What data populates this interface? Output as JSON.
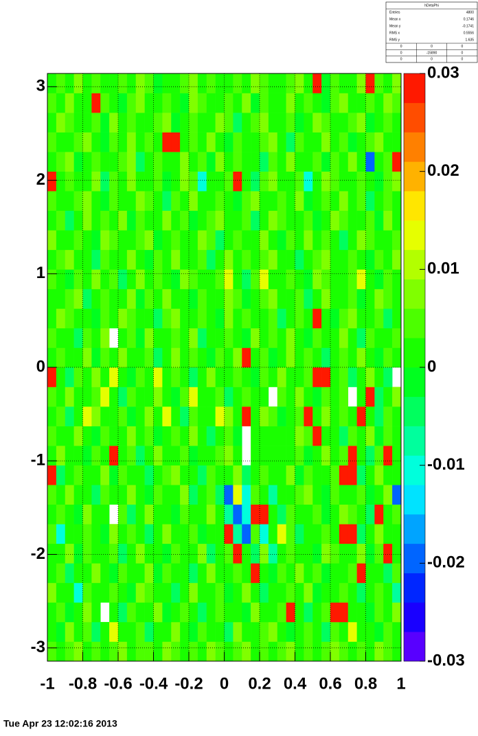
{
  "chart_data": {
    "type": "heatmap2d",
    "xlim": [
      -1,
      1
    ],
    "xticks": [
      -1,
      -0.8,
      -0.6,
      -0.4,
      -0.2,
      0,
      0.2,
      0.4,
      0.6,
      0.8,
      1
    ],
    "ylim": [
      -3.1416,
      3.1416
    ],
    "yticks": [
      -3,
      -2,
      -1,
      0,
      1,
      2,
      3
    ],
    "zlim": [
      -0.03,
      0.03
    ],
    "zticks": [
      -0.03,
      -0.02,
      -0.01,
      0,
      0.01,
      0.02,
      0.03
    ],
    "grid": true,
    "values": [
      [
        0.004,
        0.002,
        0.004,
        0.006,
        0.002,
        0.004,
        0.002,
        0.004,
        0.006,
        0.002,
        0.004,
        0.004,
        0.002,
        0.006,
        0.004,
        0.002,
        0.004,
        0.002,
        0.006,
        0.004,
        0.002,
        0.004,
        0.006,
        0.002,
        0.004,
        0.002,
        0.004,
        0.006,
        0.002,
        0.004,
        0.002,
        0.004,
        0.006,
        0.004,
        0.002,
        0.004,
        0.002,
        0.006,
        0.004,
        0.002
      ],
      [
        0.002,
        -0.002,
        0.008,
        0,
        0.004,
        -0.004,
        0.002,
        0.012,
        0,
        0.002,
        0.004,
        -0.006,
        0.002,
        0,
        0.006,
        0.002,
        -0.002,
        0.004,
        0,
        0.002,
        -0.004,
        0.006,
        0.002,
        0,
        0.004,
        0.008,
        0.002,
        -0.002,
        0,
        0.004,
        0.002,
        -0.006,
        0.004,
        0.002,
        0.012,
        0,
        0.002,
        -0.002,
        0.004,
        0
      ],
      [
        0,
        0.004,
        -0.002,
        0.002,
        0.006,
        0,
        null,
        0.002,
        -0.004,
        0.004,
        0.002,
        0,
        0.008,
        -0.002,
        0.002,
        0.004,
        0,
        -0.006,
        0.002,
        0.004,
        0,
        0.002,
        -0.002,
        0.006,
        0.002,
        0,
        0.004,
        0.03,
        0.002,
        -0.004,
        0,
        0.004,
        0.03,
        0.03,
        0.002,
        0,
        -0.002,
        0.004,
        0.002,
        0.006
      ],
      [
        0.006,
        0,
        0.002,
        -0.01,
        0.004,
        0.002,
        0,
        0.004,
        0.002,
        -0.002,
        0.006,
        0.004,
        0,
        0.002,
        -0.004,
        0.002,
        0.008,
        0,
        0.002,
        0.004,
        -0.002,
        0,
        0.006,
        0.002,
        -0.004,
        0.002,
        0,
        0.004,
        0.002,
        0.008,
        -0.002,
        0,
        0.002,
        0.004,
        0,
        -0.006,
        0.002,
        0.004,
        0,
        -0.008
      ],
      [
        0.002,
        0.004,
        -0.004,
        0.002,
        0,
        0.006,
        0.002,
        -0.002,
        0.004,
        0,
        0.002,
        0.008,
        -0.002,
        0.004,
        0.002,
        0,
        -0.004,
        0.002,
        0.006,
        0,
        0.002,
        0.004,
        0,
        0.03,
        0.002,
        -0.002,
        0.004,
        0,
        0.006,
        0.002,
        0.004,
        -0.002,
        0,
        0.002,
        0.004,
        0.03,
        0,
        0.002,
        -0.004,
        0.004
      ],
      [
        0,
        0.002,
        0.006,
        -0.002,
        0.004,
        0,
        0.002,
        0.004,
        -0.006,
        0.002,
        0.008,
        0,
        0.002,
        -0.002,
        0.004,
        0.002,
        0,
        0.006,
        -0.004,
        0.002,
        0.004,
        0.03,
        0.002,
        -0.004,
        0.008,
        -0.008,
        0.002,
        0.004,
        0,
        0.002,
        -0.002,
        0.006,
        0.004,
        0,
        0.002,
        0.008,
        -0.002,
        0.004,
        0.03,
        0
      ],
      [
        0.004,
        -0.01,
        0.002,
        0,
        0.004,
        0.002,
        -0.002,
        0.006,
        0,
        0.004,
        0.002,
        -0.004,
        0.002,
        0.008,
        0,
        0.002,
        0.004,
        -0.002,
        0.002,
        0,
        0.03,
        -0.008,
        -0.02,
        0.004,
        -0.01,
        0.002,
        0.012,
        0.004,
        -0.006,
        0.002,
        0,
        0.004,
        0.002,
        0.03,
        0.03,
        -0.004,
        0.002,
        0.006,
        0,
        0.002
      ],
      [
        0.002,
        0.004,
        0,
        -0.002,
        0.008,
        0,
        0.002,
        null,
        0.004,
        -0.004,
        0.002,
        0.006,
        0,
        0.002,
        -0.002,
        0.004,
        0.002,
        0,
        0.006,
        0.002,
        -0.008,
        -0.02,
        -0.01,
        0.03,
        0.03,
        0.002,
        -0.006,
        0.004,
        0.002,
        0,
        0.004,
        -0.002,
        0.002,
        0.006,
        0.004,
        0,
        -0.004,
        0.03,
        0.002,
        0.004
      ],
      [
        0.004,
        0.002,
        0.006,
        0,
        0.002,
        -0.004,
        0.004,
        0.002,
        0,
        0.008,
        0.002,
        -0.002,
        0.004,
        0,
        0.002,
        0.006,
        -0.004,
        0.002,
        0.004,
        -0.006,
        -0.02,
        0.012,
        -0.01,
        0.004,
        0.002,
        -0.008,
        0.002,
        0,
        0.004,
        0.006,
        0.002,
        -0.002,
        0.004,
        0,
        0.002,
        0.004,
        -0.002,
        0.002,
        0.008,
        -0.02
      ],
      [
        0.03,
        -0.004,
        0.002,
        0.004,
        0,
        0.002,
        0.006,
        -0.002,
        0.004,
        0.002,
        0,
        -0.006,
        0.002,
        0.004,
        0.008,
        0,
        0.002,
        -0.004,
        0.004,
        0.002,
        0,
        0.006,
        -0.004,
        0.002,
        0.004,
        0,
        0.002,
        0.008,
        -0.002,
        0.004,
        0.002,
        0,
        0.004,
        0.03,
        0.03,
        -0.004,
        0.002,
        0.006,
        0,
        0.002
      ],
      [
        0.002,
        0.006,
        0,
        0.002,
        -0.002,
        0.004,
        0.002,
        0.03,
        0,
        0.004,
        -0.004,
        0.002,
        0.006,
        0,
        0.002,
        0.004,
        -0.002,
        0.002,
        0,
        0.004,
        0.006,
        0.002,
        null,
        0,
        0,
        0,
        0,
        0.002,
        0.004,
        -0.002,
        0.002,
        0.006,
        0,
        0.004,
        0.03,
        0.002,
        -0.004,
        0.004,
        0.03,
        0.002
      ],
      [
        0.004,
        0,
        0.002,
        0.006,
        0.002,
        -0.002,
        0.004,
        0,
        0.002,
        0.008,
        0,
        0.004,
        -0.002,
        0.002,
        0.004,
        0,
        0.006,
        0.002,
        -0.004,
        0.002,
        0.004,
        -0.002,
        null,
        0,
        0,
        0,
        0,
        0.002,
        0.006,
        0.004,
        0.03,
        0,
        0.002,
        -0.004,
        0.004,
        0.002,
        0.008,
        -0.002,
        0.004,
        0
      ],
      [
        0.002,
        0.004,
        -0.004,
        0.002,
        0.012,
        0.006,
        0,
        0.002,
        0.004,
        -0.002,
        0.002,
        0.006,
        0,
        0.012,
        0.002,
        -0.004,
        0.004,
        0.002,
        0,
        0.012,
        0.006,
        0.002,
        0.03,
        0.002,
        0.008,
        0.004,
        -0.002,
        0.002,
        0.004,
        0.03,
        0.002,
        0.006,
        0,
        0.004,
        0.002,
        0.03,
        0.002,
        -0.006,
        0.004,
        0.002
      ],
      [
        0.004,
        0.002,
        0.008,
        0,
        0.002,
        0.004,
        0.012,
        0.002,
        -0.004,
        0.004,
        0.002,
        0,
        0.006,
        0.002,
        -0.002,
        0.004,
        0.012,
        0,
        0.002,
        0.004,
        -0.006,
        0.002,
        0.004,
        0,
        0.002,
        null,
        0.004,
        0.002,
        0.006,
        0.002,
        -0.002,
        0.004,
        0.002,
        0.004,
        null,
        0.002,
        0.03,
        -0.004,
        0.002,
        0.006
      ],
      [
        0.03,
        0.002,
        -0.004,
        0.004,
        0.002,
        0.006,
        0,
        0.012,
        0.002,
        -0.002,
        0.004,
        0.002,
        0.012,
        0,
        0.004,
        0.002,
        -0.004,
        0.002,
        0.006,
        0,
        0.002,
        0.004,
        0.002,
        -0.002,
        0.004,
        0.002,
        0.006,
        0,
        0.002,
        0.004,
        0.03,
        0.03,
        0.002,
        0.004,
        -0.004,
        0.002,
        0.006,
        0.002,
        -0.004,
        null
      ],
      [
        0.002,
        0.004,
        0,
        0.002,
        0.006,
        -0.002,
        0.004,
        0.002,
        0.008,
        0,
        0.002,
        0.004,
        -0.004,
        0.002,
        0.006,
        0,
        0.004,
        0.002,
        -0.002,
        0.004,
        0.002,
        0.006,
        0.03,
        0.002,
        0.004,
        -0.002,
        0.002,
        0.006,
        0,
        0.004,
        0.002,
        -0.004,
        0.002,
        0.004,
        0,
        0.008,
        0.002,
        -0.002,
        0.004,
        0.002
      ],
      [
        0.004,
        0,
        0.002,
        -0.004,
        0.004,
        0.002,
        0.008,
        null,
        0.002,
        0.004,
        -0.002,
        0.006,
        0.002,
        0,
        0.004,
        0.002,
        0.006,
        -0.004,
        0.002,
        0,
        0.004,
        0.002,
        -0.002,
        0.006,
        0.002,
        0.004,
        0,
        0.008,
        0.002,
        -0.002,
        0.004,
        0.002,
        0,
        0.006,
        0.002,
        -0.004,
        0.004,
        0.002,
        0,
        0.004
      ],
      [
        0.002,
        0.006,
        0.004,
        0,
        0.002,
        -0.002,
        0.004,
        0.002,
        0.006,
        0.004,
        0,
        0.002,
        -0.004,
        0.004,
        0.008,
        0.002,
        0,
        0.004,
        0.002,
        -0.002,
        0.006,
        0.002,
        0.004,
        0,
        0.002,
        0.004,
        -0.006,
        0.002,
        0.004,
        0.002,
        0.03,
        0.002,
        -0.002,
        0.004,
        0.006,
        0,
        0.002,
        0.004,
        -0.004,
        0.002
      ],
      [
        0,
        0.002,
        0.004,
        0.006,
        -0.004,
        0.002,
        0.004,
        0,
        0.002,
        0.008,
        -0.002,
        0.004,
        0.002,
        0.006,
        0,
        0.002,
        -0.002,
        0.004,
        0.002,
        0,
        0.006,
        0.004,
        -0.002,
        0.002,
        0.004,
        0.008,
        0.002,
        0,
        0.004,
        -0.004,
        0.002,
        0.006,
        0,
        0.002,
        0.004,
        -0.002,
        0.002,
        0.008,
        0.004,
        0
      ],
      [
        0.004,
        0.002,
        -0.002,
        0.004,
        0,
        0.006,
        0.002,
        0.004,
        -0.004,
        0.002,
        0.008,
        0,
        0.004,
        0.002,
        -0.002,
        0.006,
        0.004,
        0.002,
        0,
        0.004,
        0.012,
        0.002,
        -0.004,
        0.004,
        0.012,
        0.002,
        0,
        0.004,
        0.002,
        -0.002,
        0.006,
        0.004,
        0,
        0.002,
        0.004,
        0.012,
        0.002,
        -0.002,
        0.004,
        0.002
      ],
      [
        0.002,
        0.004,
        0.006,
        0,
        0.002,
        -0.004,
        0.004,
        0.002,
        0,
        0.006,
        0.002,
        -0.002,
        0.004,
        0.002,
        0.008,
        0,
        0.002,
        0.004,
        -0.004,
        0.002,
        0.006,
        0,
        0.004,
        0.002,
        0.004,
        0.008,
        0.002,
        0,
        -0.006,
        0.002,
        0.004,
        0.006,
        0.002,
        0,
        0.004,
        0.002,
        -0.002,
        0.004,
        0.002,
        0.006
      ],
      [
        0.006,
        0.002,
        0,
        0.004,
        0.002,
        -0.002,
        0.008,
        0.004,
        0.002,
        0,
        0.004,
        0.006,
        -0.002,
        0.002,
        0.004,
        0,
        0.002,
        0.006,
        0.004,
        -0.004,
        0.002,
        0.004,
        0,
        0.002,
        0.006,
        0.002,
        -0.002,
        0.004,
        0.002,
        0.008,
        0,
        0.004,
        0.002,
        -0.004,
        0.002,
        0.006,
        0.004,
        0,
        0.002,
        0.004
      ],
      [
        0.002,
        0.004,
        -0.004,
        0.002,
        0.006,
        0,
        0.004,
        0.002,
        0.008,
        -0.002,
        0.004,
        0.002,
        0,
        0.006,
        0.002,
        0.004,
        -0.002,
        0.002,
        0.004,
        0.006,
        0,
        0.002,
        0.004,
        -0.006,
        0.002,
        0.008,
        0.004,
        0,
        0.002,
        0.004,
        -0.002,
        0.002,
        0.006,
        0.004,
        0,
        0.002,
        0.004,
        -0.002,
        0.006,
        0.002
      ],
      [
        0.004,
        0,
        0.002,
        0.004,
        0.006,
        0.002,
        -0.002,
        0.004,
        0.002,
        0,
        0.006,
        0.004,
        0.002,
        -0.004,
        0.004,
        0.002,
        0.006,
        0,
        0.002,
        0.004,
        0.002,
        -0.002,
        0.004,
        0.006,
        0.002,
        0,
        0.004,
        0.002,
        0.008,
        -0.002,
        0.002,
        0.004,
        0,
        0.006,
        0.002,
        0.004,
        -0.004,
        0.002,
        0.004,
        0.002
      ],
      [
        0.03,
        0.002,
        0.004,
        0,
        0.002,
        0.006,
        -0.004,
        0.004,
        0.002,
        0.008,
        0,
        0.002,
        0.004,
        -0.002,
        0.002,
        0.006,
        0.004,
        -0.01,
        0,
        0.002,
        0.004,
        0.03,
        0.002,
        -0.004,
        0.004,
        0.006,
        0.002,
        0,
        0.004,
        -0.01,
        0.002,
        0.006,
        0.004,
        0,
        0.002,
        0.004,
        0.002,
        -0.002,
        0.004,
        0.006
      ],
      [
        0.002,
        0.004,
        0.006,
        -0.002,
        0.002,
        0.004,
        0.002,
        0,
        0.004,
        0.006,
        -0.004,
        0.002,
        0.004,
        0,
        0.002,
        0.008,
        0.002,
        0.004,
        -0.002,
        0.006,
        0.002,
        0.004,
        0,
        0.002,
        -0.004,
        0.004,
        0.002,
        0.006,
        0,
        0.002,
        0.004,
        -0.002,
        0.004,
        0.002,
        0.006,
        0,
        -0.02,
        0.002,
        0.004,
        0.03
      ],
      [
        0.004,
        0.002,
        0,
        0.004,
        0.006,
        0.002,
        -0.002,
        0.004,
        0.002,
        0.006,
        0,
        0.004,
        0.002,
        0.03,
        0.03,
        0.002,
        0.004,
        0,
        0.006,
        0.002,
        -0.002,
        0.004,
        0.002,
        0,
        0.004,
        0.006,
        0.002,
        -0.004,
        0.004,
        0.002,
        0,
        0.006,
        0.002,
        0.004,
        -0.002,
        0.002,
        0.004,
        0.006,
        0.002,
        0
      ],
      [
        0.002,
        0.006,
        0.004,
        0,
        0.002,
        0.004,
        -0.002,
        0.006,
        0.002,
        0.004,
        0,
        0.002,
        0.004,
        0.006,
        -0.002,
        0.002,
        0.004,
        0,
        0.002,
        0.006,
        0.004,
        -0.004,
        0.002,
        0.004,
        0.006,
        0,
        0.002,
        0.004,
        -0.002,
        0.002,
        0.006,
        0.004,
        0,
        0.002,
        0.004,
        0.006,
        -0.002,
        0.002,
        0.004,
        0.002
      ],
      [
        0.004,
        0.002,
        0.006,
        0,
        0.002,
        0.03,
        0.004,
        0.002,
        -0.002,
        0.004,
        0.006,
        0.002,
        0,
        0.004,
        0.002,
        -0.002,
        0.006,
        0.004,
        0.002,
        0,
        0.004,
        0.002,
        0.006,
        -0.002,
        0.004,
        0.002,
        0,
        0.006,
        0.002,
        0.004,
        0.002,
        -0.002,
        0.004,
        0.006,
        0,
        0.002,
        0.004,
        0.002,
        0.006,
        0.004
      ],
      [
        0.002,
        0.004,
        0,
        0.006,
        0.002,
        0.004,
        0.002,
        0,
        0.004,
        0.002,
        0.006,
        0.004,
        -0.002,
        0.002,
        0,
        0.004,
        0.006,
        0.002,
        0.004,
        0,
        0.002,
        0.004,
        0.002,
        0.006,
        0.004,
        0,
        0.002,
        0.004,
        0.006,
        0.002,
        0.03,
        -0.002,
        0.004,
        0.002,
        0,
        0.006,
        0.03,
        0.004,
        0.002,
        0.006
      ]
    ],
    "stats": {
      "title": "hDetaPhi",
      "rows": [
        {
          "label": "Entries",
          "value": 4800
        },
        {
          "label": "Mean x",
          "value": 0.1746
        },
        {
          "label": "Mean y",
          "value": -0.1741
        },
        {
          "label": "RMS x",
          "value": 0.5556
        },
        {
          "label": "RMS y",
          "value": 1.635
        }
      ],
      "table": [
        [
          0,
          0,
          0
        ],
        [
          0,
          -15890,
          0
        ],
        [
          0,
          0,
          0
        ]
      ]
    },
    "footer": "Tue Apr 23 12:02:16 2013"
  }
}
